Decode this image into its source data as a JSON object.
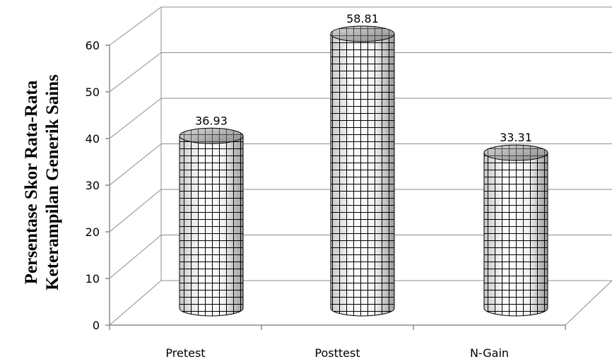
{
  "chart_data": {
    "type": "bar",
    "style": "3d-cylinder",
    "categories": [
      "Pretest",
      "Posttest",
      "N-Gain"
    ],
    "values": [
      36.93,
      58.81,
      33.31
    ],
    "data_labels": [
      "36.93",
      "58.81",
      "33.31"
    ],
    "ylabel_lines": [
      "Persentase Skor Rata-Rata",
      "Keterampilan Generik Sains"
    ],
    "ylim": [
      0,
      60
    ],
    "yticks": [
      "0",
      "10",
      "20",
      "30",
      "40",
      "50",
      "60"
    ],
    "grid": true,
    "legend": "none"
  }
}
